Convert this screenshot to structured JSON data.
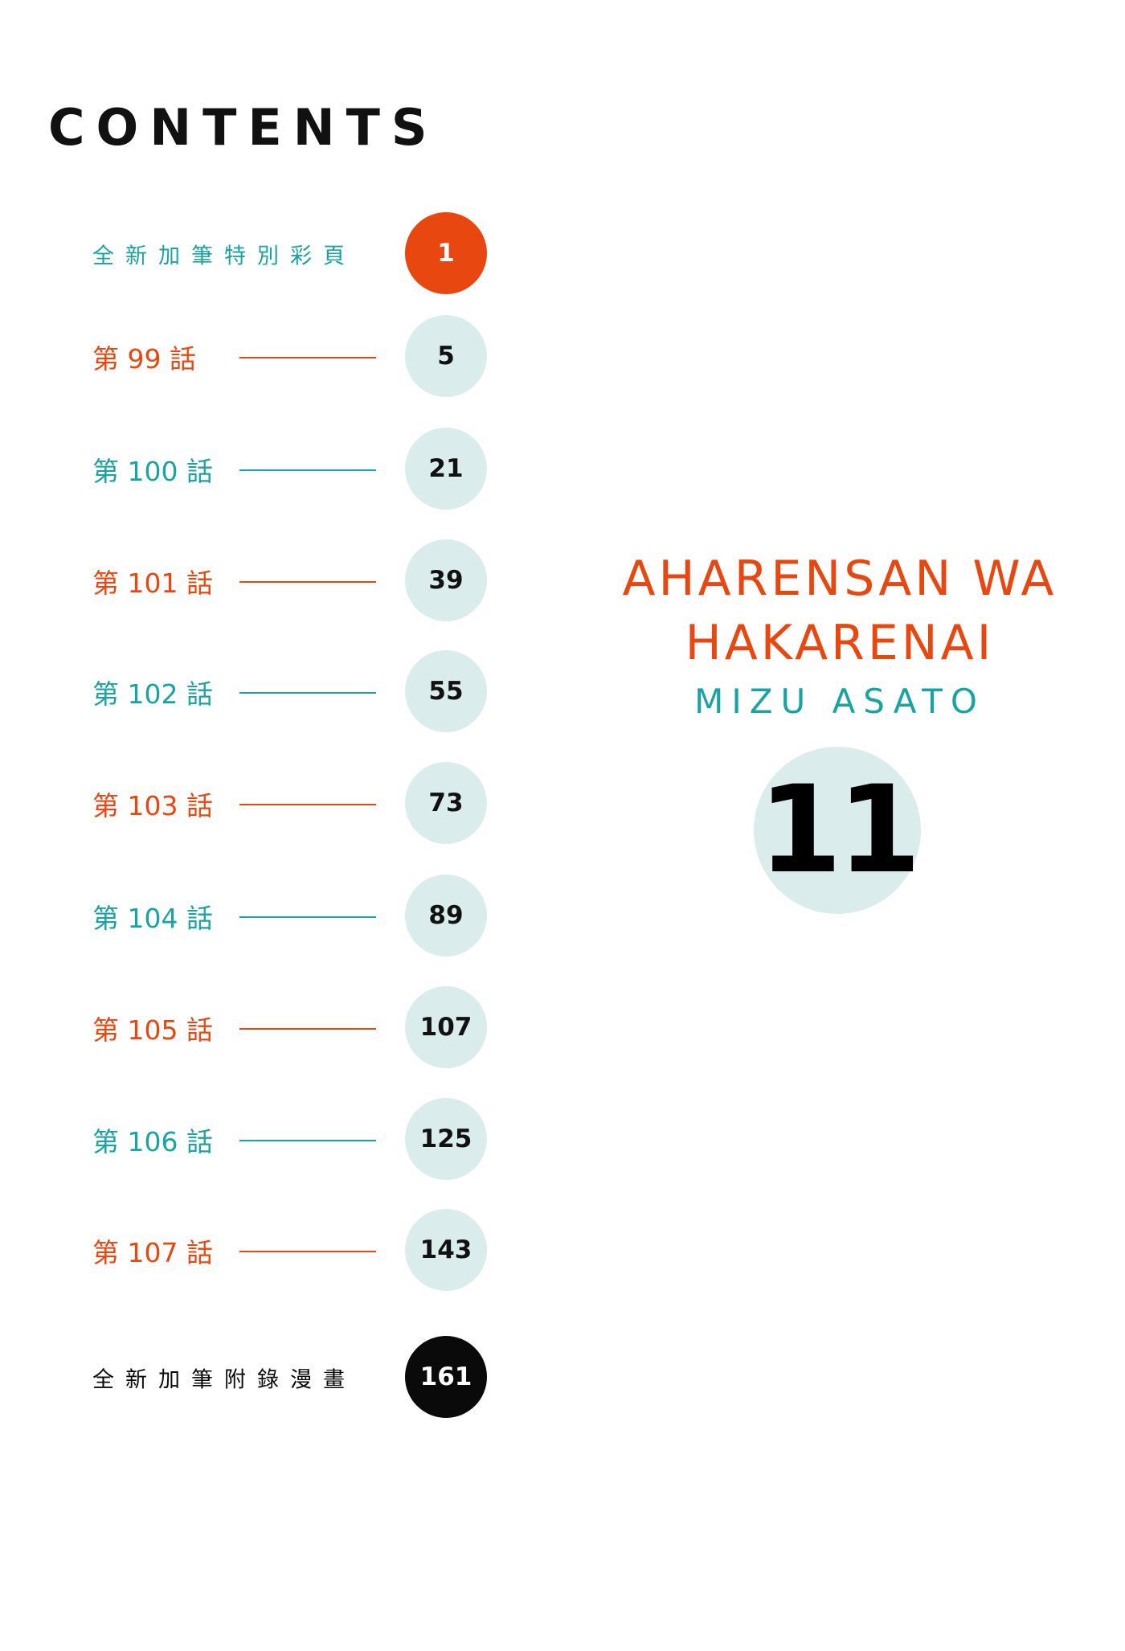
{
  "header": {
    "title": "CONTENTS"
  },
  "colors": {
    "orange": "#e8470f",
    "teal": "#1aa3a3",
    "circle": "#daeceb",
    "black": "#0a0a0a"
  },
  "rows": [
    {
      "label": "全新加筆特別彩頁",
      "page": "1",
      "color": "teal",
      "style": "accent"
    },
    {
      "label": "第 99 話",
      "page": "5",
      "color": "orange",
      "style": "normal"
    },
    {
      "label": "第 100 話",
      "page": "21",
      "color": "teal",
      "style": "normal"
    },
    {
      "label": "第 101 話",
      "page": "39",
      "color": "orange",
      "style": "normal"
    },
    {
      "label": "第 102 話",
      "page": "55",
      "color": "teal",
      "style": "normal"
    },
    {
      "label": "第 103 話",
      "page": "73",
      "color": "orange",
      "style": "normal"
    },
    {
      "label": "第 104 話",
      "page": "89",
      "color": "teal",
      "style": "normal"
    },
    {
      "label": "第 105 話",
      "page": "107",
      "color": "orange",
      "style": "normal"
    },
    {
      "label": "第 106 話",
      "page": "125",
      "color": "teal",
      "style": "normal"
    },
    {
      "label": "第 107 話",
      "page": "143",
      "color": "orange",
      "style": "normal"
    },
    {
      "label": "全新加筆附錄漫畫",
      "page": "161",
      "color": "black",
      "style": "dark"
    }
  ],
  "book": {
    "title_line1": "AHARENSAN WA",
    "title_line2": "HAKARENAI",
    "author": "MIZU ASATO",
    "volume": "11"
  }
}
